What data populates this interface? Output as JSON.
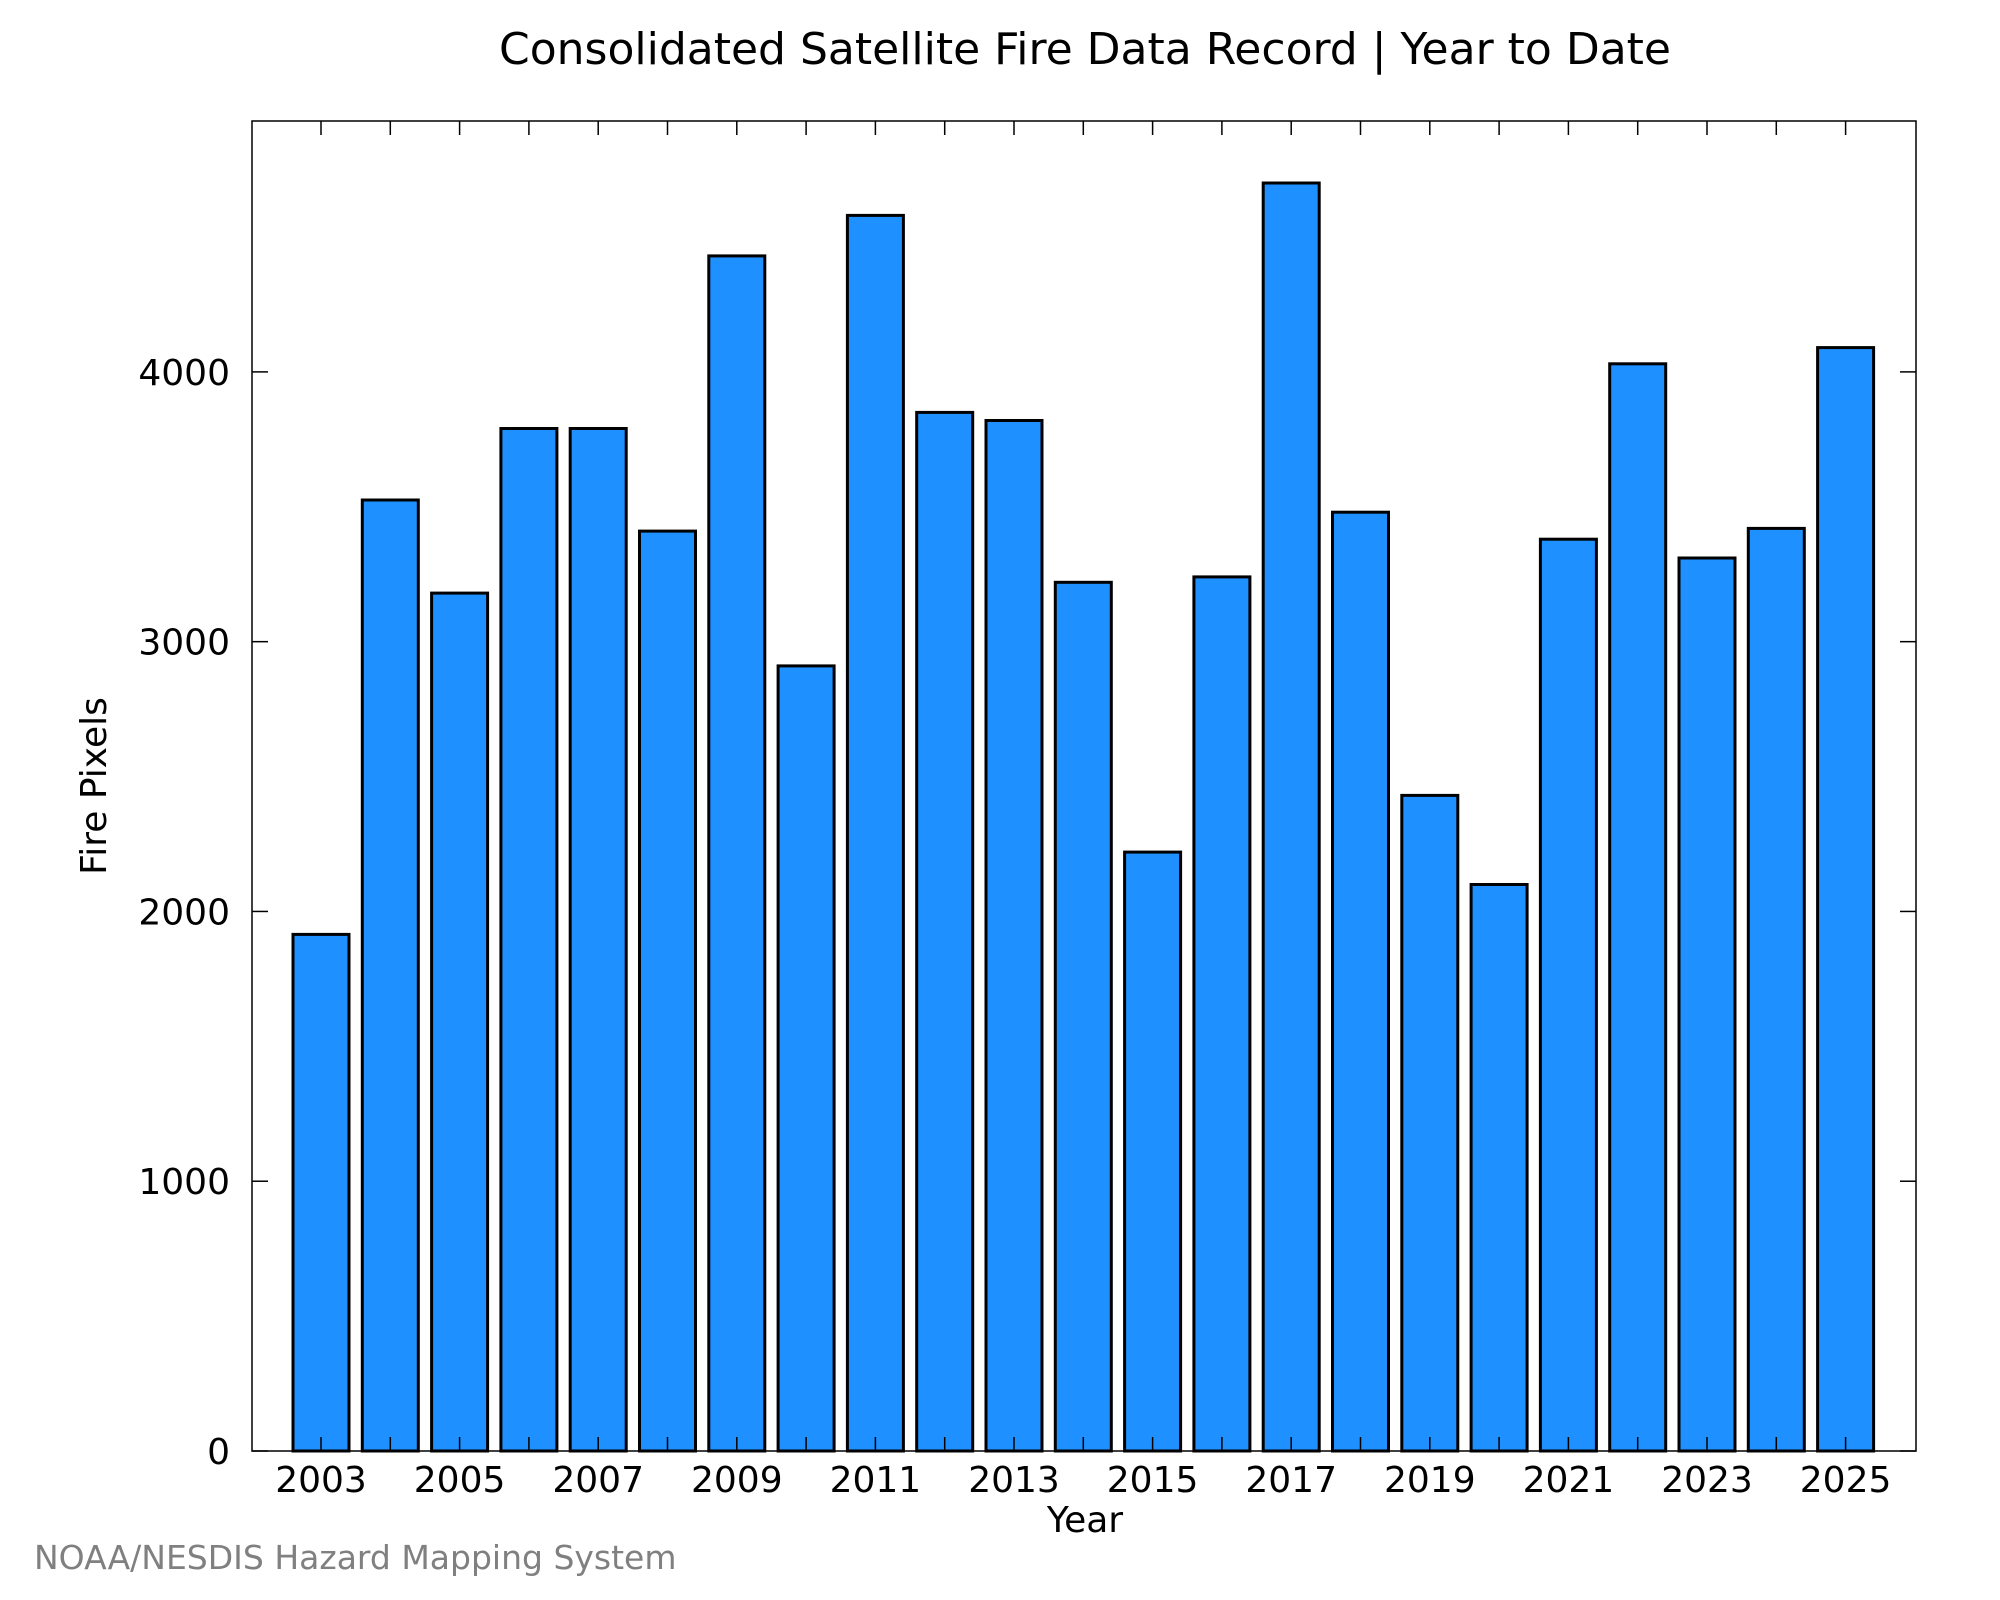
{
  "chart_data": {
    "type": "bar",
    "title": "Consolidated Satellite Fire Data Record | Year to Date",
    "xlabel": "Year",
    "ylabel": "Fire Pixels",
    "categories": [
      "2003",
      "2004",
      "2005",
      "2006",
      "2007",
      "2008",
      "2009",
      "2010",
      "2011",
      "2012",
      "2013",
      "2014",
      "2015",
      "2016",
      "2017",
      "2018",
      "2019",
      "2020",
      "2021",
      "2022",
      "2023",
      "2024",
      "2025"
    ],
    "values": [
      1915,
      3525,
      3180,
      3790,
      3790,
      3410,
      4430,
      2910,
      4580,
      3850,
      3820,
      3220,
      2220,
      3240,
      4700,
      3480,
      2430,
      2100,
      3380,
      4030,
      3310,
      3420,
      4090
    ],
    "x_tick_labels": [
      "2003",
      "2005",
      "2007",
      "2009",
      "2011",
      "2013",
      "2015",
      "2017",
      "2019",
      "2021",
      "2023",
      "2025"
    ],
    "y_ticks": [
      "0",
      "1000",
      "2000",
      "3000",
      "4000"
    ],
    "ylim": [
      0,
      4930
    ],
    "grid": false,
    "legend": "none",
    "bar_color": "#1e90ff",
    "bar_edge_color": "#000000"
  },
  "credit": "NOAA/NESDIS Hazard Mapping System"
}
